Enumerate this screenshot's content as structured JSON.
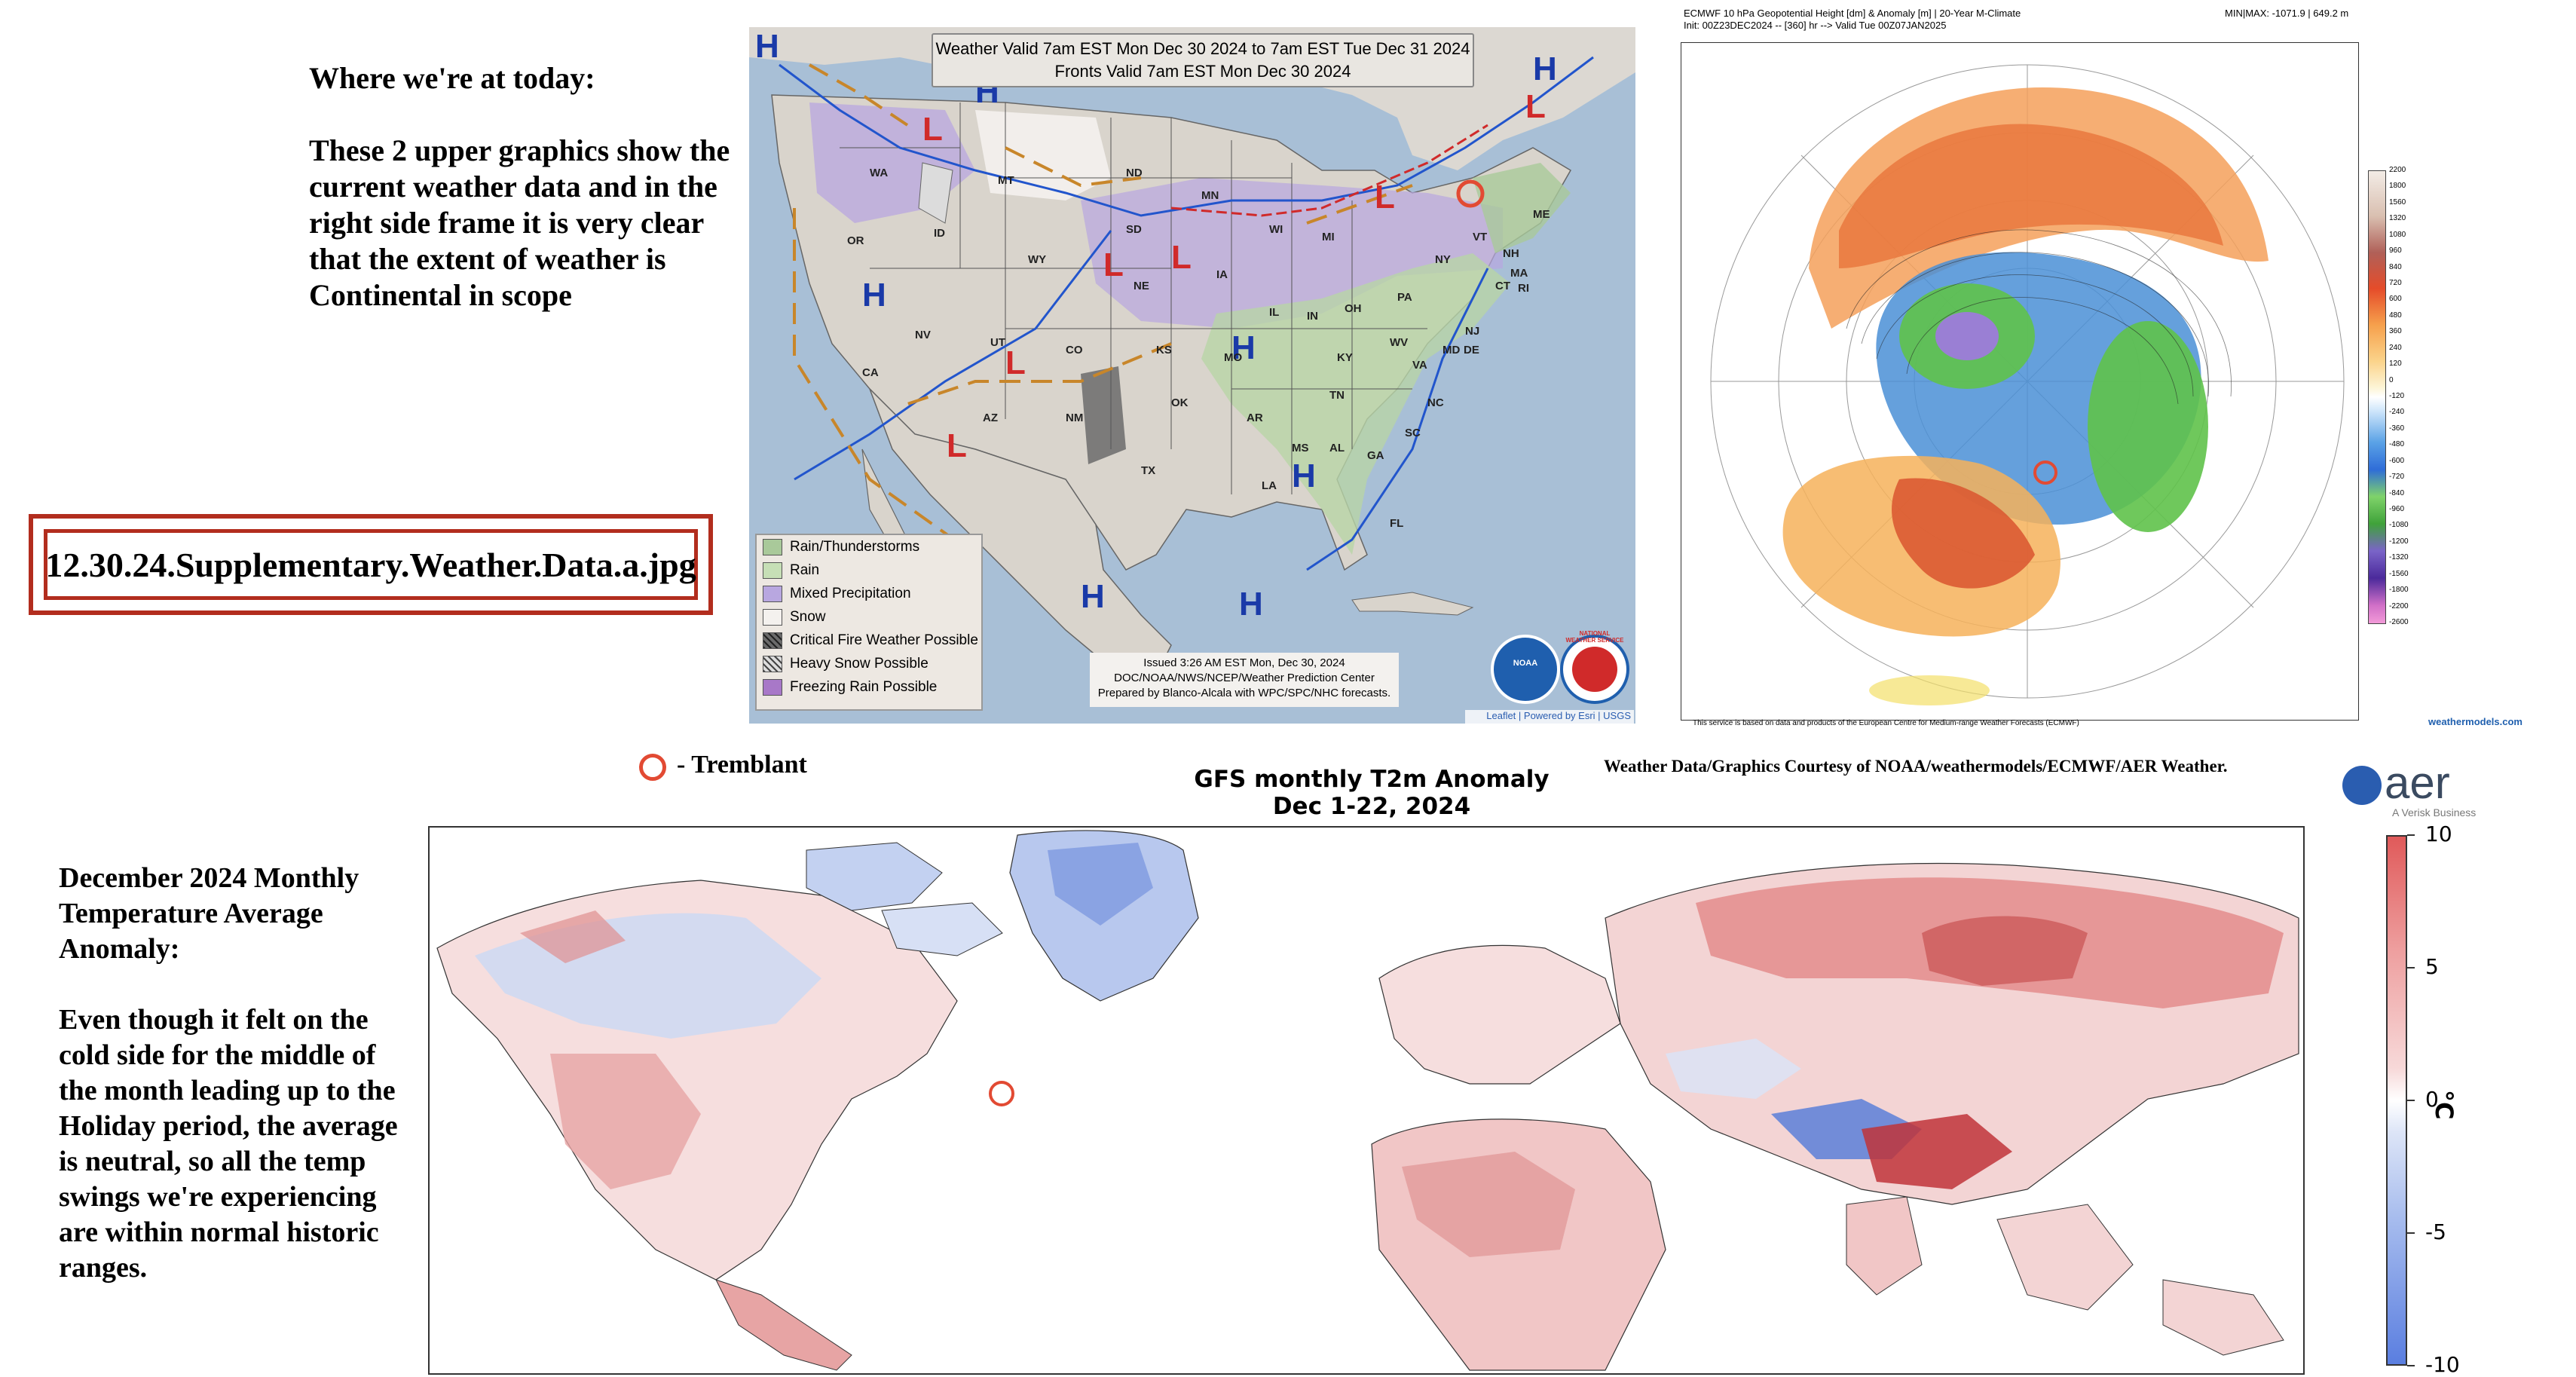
{
  "intro": {
    "heading": "Where we're at today:",
    "body": "These 2 upper graphics show the current weather data and in the right side frame it is very clear that the extent of weather is Continental in scope"
  },
  "file_label": "12.30.24.Supplementary.Weather.Data.a.jpg",
  "wpc_map": {
    "title_line1": "Weather Valid 7am EST Mon Dec 30 2024 to 7am EST Tue Dec 31 2024",
    "title_line2": "Fronts Valid 7am EST Mon Dec 30 2024",
    "legend": [
      {
        "label": "Rain/Thunderstorms",
        "color": "#a9c99a"
      },
      {
        "label": "Rain",
        "color": "#c6dfb6"
      },
      {
        "label": "Mixed Precipitation",
        "color": "#b8a7e0"
      },
      {
        "label": "Snow",
        "color": "#f4f1ee"
      },
      {
        "label": "Critical Fire Weather Possible",
        "color": "#6b6b6b"
      },
      {
        "label": "Heavy Snow Possible",
        "color": "#dcdcdc"
      },
      {
        "label": "Freezing Rain Possible",
        "color": "#a878c8"
      }
    ],
    "issued_line1": "Issued  3:26 AM EST  Mon, Dec 30, 2024",
    "issued_line2": "DOC/NOAA/NWS/NCEP/Weather Prediction Center",
    "issued_line3": "Prepared by Blanco-Alcala with WPC/SPC/NHC forecasts.",
    "attribution": "Leaflet | Powered by Esri | USGS",
    "noaa_logo": "NOAA",
    "nws_logo": "NATIONAL WEATHER SERVICE",
    "states": [
      {
        "name": "WA"
      },
      {
        "name": "OR"
      },
      {
        "name": "ID"
      },
      {
        "name": "MT"
      },
      {
        "name": "WY"
      },
      {
        "name": "ND"
      },
      {
        "name": "SD"
      },
      {
        "name": "NE"
      },
      {
        "name": "MN"
      },
      {
        "name": "IA"
      },
      {
        "name": "WI"
      },
      {
        "name": "MI"
      },
      {
        "name": "IL"
      },
      {
        "name": "IN"
      },
      {
        "name": "OH"
      },
      {
        "name": "PA"
      },
      {
        "name": "NY"
      },
      {
        "name": "VT"
      },
      {
        "name": "NH"
      },
      {
        "name": "ME"
      },
      {
        "name": "MA"
      },
      {
        "name": "CT"
      },
      {
        "name": "RI"
      },
      {
        "name": "NJ"
      },
      {
        "name": "DE"
      },
      {
        "name": "MD"
      },
      {
        "name": "WV"
      },
      {
        "name": "VA"
      },
      {
        "name": "NC"
      },
      {
        "name": "SC"
      },
      {
        "name": "GA"
      },
      {
        "name": "FL"
      },
      {
        "name": "AL"
      },
      {
        "name": "MS"
      },
      {
        "name": "LA"
      },
      {
        "name": "AR"
      },
      {
        "name": "TN"
      },
      {
        "name": "KY"
      },
      {
        "name": "MO"
      },
      {
        "name": "KS"
      },
      {
        "name": "OK"
      },
      {
        "name": "TX"
      },
      {
        "name": "NM"
      },
      {
        "name": "CO"
      },
      {
        "name": "UT"
      },
      {
        "name": "AZ"
      },
      {
        "name": "NV"
      },
      {
        "name": "CA"
      }
    ]
  },
  "ecmwf_map": {
    "header_line1": "ECMWF 10 hPa Geopotential Height [dm] & Anomaly [m] | 20-Year M-Climate",
    "header_line2": "Init: 00Z23DEC2024 -- [360] hr --> Valid Tue 00Z07JAN2025",
    "minmax": "MIN|MAX: -1071.9 | 649.2 m",
    "footer": "This service is based on data and products of the European Centre for Medium-range Weather Forecasts (ECMWF)",
    "site": "weathermodels.com",
    "colorbar_labels": [
      "2200",
      "1800",
      "1560",
      "1320",
      "1080",
      "960",
      "840",
      "720",
      "600",
      "480",
      "360",
      "240",
      "120",
      "0",
      "-120",
      "-240",
      "-360",
      "-480",
      "-600",
      "-720",
      "-840",
      "-960",
      "-1080",
      "-1200",
      "-1320",
      "-1560",
      "-1800",
      "-2200",
      "-2600"
    ]
  },
  "tremblant_label": "- Tremblant",
  "courtesy": "Weather Data/Graphics Courtesy of NOAA/weathermodels/ECMWF/AER Weather.",
  "aer": {
    "logo": "aer",
    "tagline": "A Verisk Business"
  },
  "gfs": {
    "title_line1": "GFS monthly T2m Anomaly",
    "title_line2": "Dec 1-22, 2024",
    "unit": "°C",
    "ticks": [
      "10",
      "5",
      "0",
      "-5",
      "-10"
    ]
  },
  "lower_text": {
    "heading": "December 2024 Monthly Temperature Average Anomaly:",
    "body": "Even though it felt on the cold side for the middle of the month leading up to the Holiday period, the average is neutral, so all the temp swings we're experiencing are within normal historic ranges."
  },
  "colors": {
    "accent_red": "#b22d1e",
    "ring_red": "#e24a33",
    "ocean": "#a8bfd6",
    "land": "#d9d4cc"
  }
}
